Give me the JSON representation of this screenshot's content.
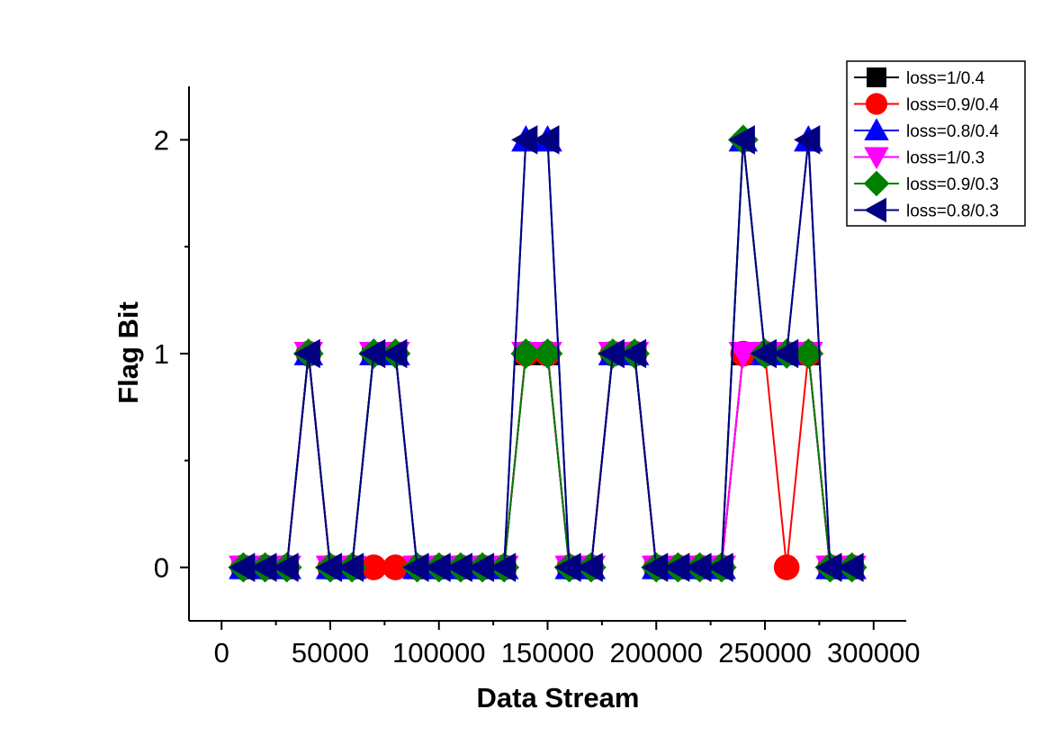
{
  "chart_data": {
    "type": "line",
    "title": "",
    "xlabel": "Data Stream",
    "ylabel": "Flag Bit",
    "xlim": [
      -15000,
      315000
    ],
    "ylim": [
      -0.25,
      2.25
    ],
    "x_ticks": [
      0,
      50000,
      100000,
      150000,
      200000,
      250000,
      300000
    ],
    "x_tick_labels": [
      "0",
      "50000",
      "100000",
      "150000",
      "200000",
      "250000",
      "300000"
    ],
    "y_ticks": [
      0,
      1,
      2
    ],
    "y_tick_labels": [
      "0",
      "1",
      "2"
    ],
    "grid": false,
    "legend_position": "top-right",
    "x": [
      10000,
      20000,
      30000,
      40000,
      50000,
      60000,
      70000,
      80000,
      90000,
      100000,
      110000,
      120000,
      130000,
      140000,
      150000,
      160000,
      170000,
      180000,
      190000,
      200000,
      210000,
      220000,
      230000,
      240000,
      250000,
      260000,
      270000,
      280000,
      290000
    ],
    "series": [
      {
        "name": "loss=1/0.4",
        "color": "#000000",
        "marker": "square",
        "values": [
          0,
          0,
          0,
          1,
          0,
          0,
          1,
          1,
          0,
          0,
          0,
          0,
          0,
          1,
          1,
          0,
          0,
          1,
          1,
          0,
          0,
          0,
          0,
          1,
          1,
          1,
          1,
          0,
          0
        ]
      },
      {
        "name": "loss=0.9/0.4",
        "color": "#ff0000",
        "marker": "circle",
        "values": [
          0,
          0,
          0,
          1,
          0,
          0,
          0,
          0,
          0,
          0,
          0,
          0,
          0,
          1,
          1,
          0,
          0,
          1,
          1,
          0,
          0,
          0,
          0,
          1,
          1,
          0,
          1,
          0,
          0
        ]
      },
      {
        "name": "loss=0.8/0.4",
        "color": "#0000ff",
        "marker": "triangle-up",
        "values": [
          0,
          0,
          0,
          1,
          0,
          0,
          1,
          1,
          0,
          0,
          0,
          0,
          0,
          2,
          2,
          0,
          0,
          1,
          1,
          0,
          0,
          0,
          0,
          2,
          1,
          1,
          2,
          0,
          0
        ]
      },
      {
        "name": "loss=1/0.3",
        "color": "#ff00ff",
        "marker": "triangle-down",
        "values": [
          0,
          0,
          0,
          1,
          0,
          0,
          1,
          1,
          0,
          0,
          0,
          0,
          0,
          1,
          1,
          0,
          0,
          1,
          1,
          0,
          0,
          0,
          0,
          1,
          1,
          1,
          1,
          0,
          0
        ]
      },
      {
        "name": "loss=0.9/0.3",
        "color": "#008000",
        "marker": "diamond",
        "values": [
          0,
          0,
          0,
          1,
          0,
          0,
          1,
          1,
          0,
          0,
          0,
          0,
          0,
          1,
          1,
          0,
          0,
          1,
          1,
          0,
          0,
          0,
          0,
          2,
          1,
          1,
          1,
          0,
          0
        ]
      },
      {
        "name": "loss=0.8/0.3",
        "color": "#000080",
        "marker": "triangle-left",
        "values": [
          0,
          0,
          0,
          1,
          0,
          0,
          1,
          1,
          0,
          0,
          0,
          0,
          0,
          2,
          2,
          0,
          0,
          1,
          1,
          0,
          0,
          0,
          0,
          2,
          1,
          1,
          2,
          0,
          0
        ]
      }
    ]
  }
}
